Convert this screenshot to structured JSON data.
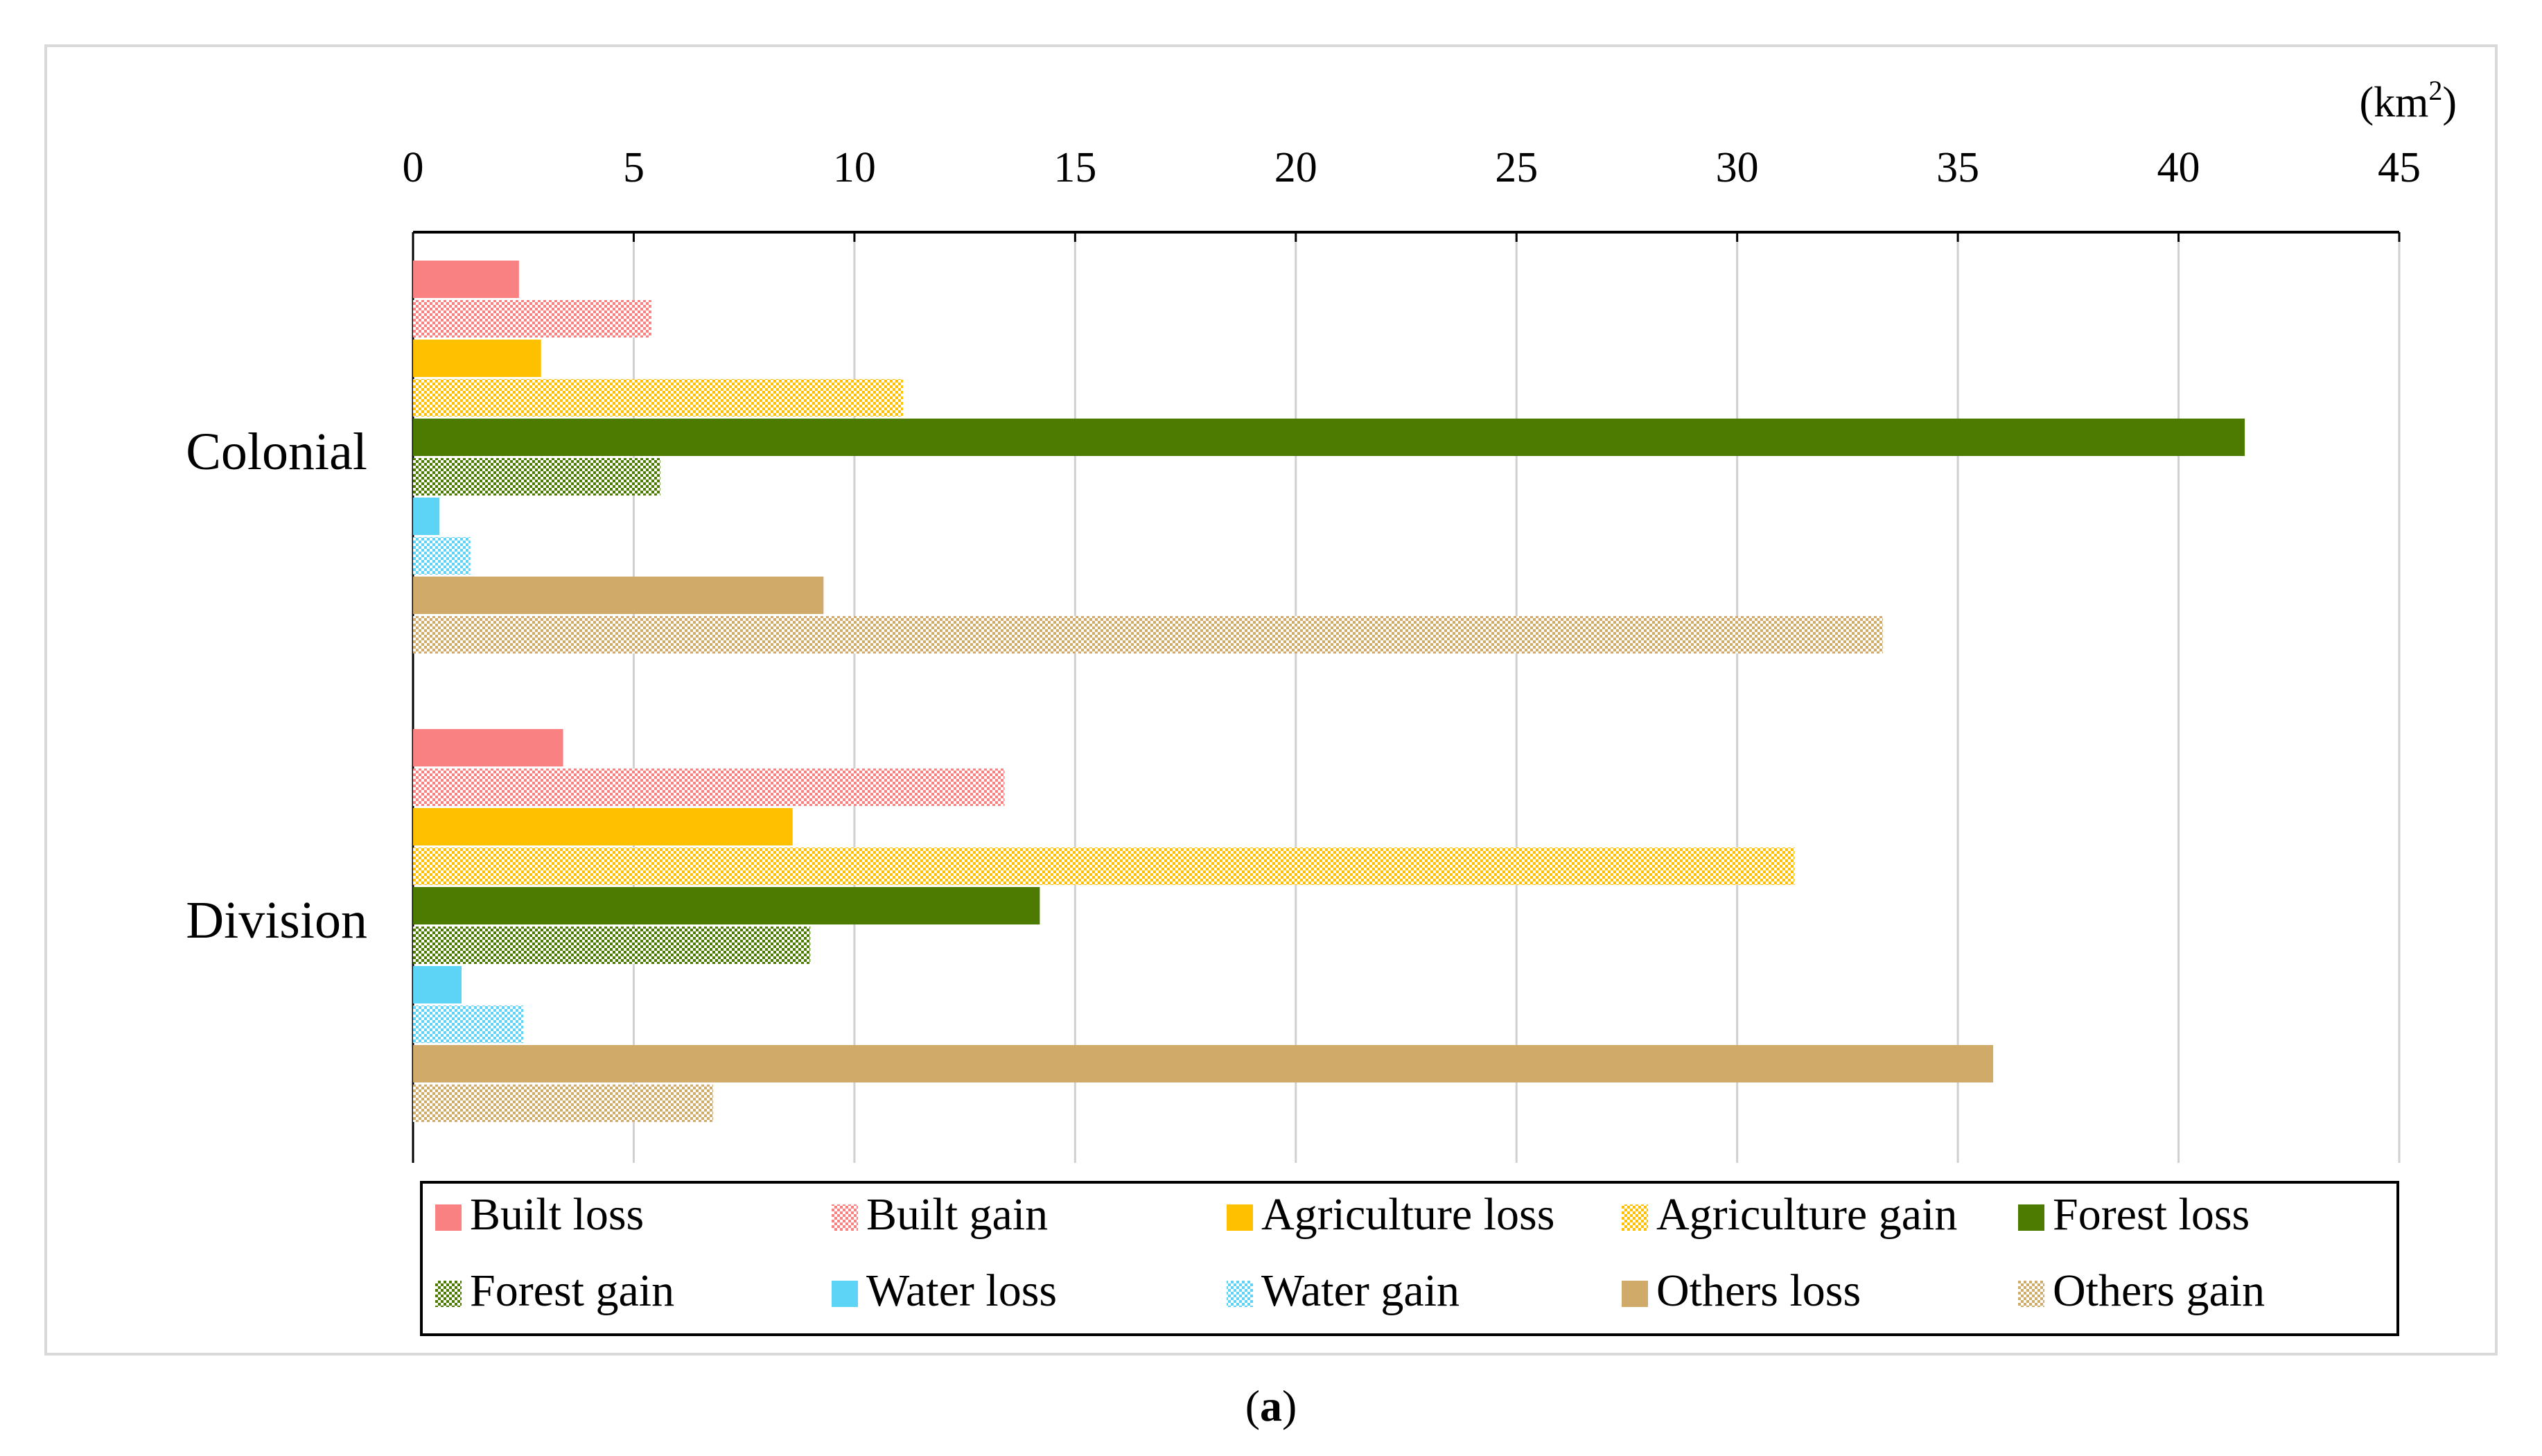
{
  "chart_data": {
    "type": "bar",
    "orientation": "horizontal",
    "unit_label": "(km²)",
    "unit_base": "(km",
    "unit_sup": "2",
    "unit_close": ")",
    "xlim": [
      0,
      45
    ],
    "xticks": [
      0,
      5,
      10,
      15,
      20,
      25,
      30,
      35,
      40,
      45
    ],
    "grid": true,
    "categories": [
      "Colonial",
      "Division"
    ],
    "series": [
      {
        "name": "Built loss",
        "color": "#F98181",
        "pattern": false,
        "values": [
          2.4,
          3.4
        ]
      },
      {
        "name": "Built gain",
        "color": "#F98181",
        "pattern": true,
        "values": [
          5.4,
          13.4
        ]
      },
      {
        "name": "Agriculture loss",
        "color": "#FFC000",
        "pattern": false,
        "values": [
          2.9,
          8.6
        ]
      },
      {
        "name": "Agriculture gain",
        "color": "#FFC000",
        "pattern": true,
        "values": [
          11.1,
          31.3
        ]
      },
      {
        "name": "Forest loss",
        "color": "#4D7A00",
        "pattern": false,
        "values": [
          41.5,
          14.2
        ]
      },
      {
        "name": "Forest gain",
        "color": "#4D7A00",
        "pattern": true,
        "values": [
          5.6,
          9.0
        ]
      },
      {
        "name": "Water loss",
        "color": "#5DD3F5",
        "pattern": false,
        "values": [
          0.6,
          1.1
        ]
      },
      {
        "name": "Water gain",
        "color": "#5DD3F5",
        "pattern": true,
        "values": [
          1.3,
          2.5
        ]
      },
      {
        "name": "Others loss",
        "color": "#CFAA68",
        "pattern": false,
        "values": [
          9.3,
          35.8
        ]
      },
      {
        "name": "Others gain",
        "color": "#CFAA68",
        "pattern": true,
        "values": [
          33.3,
          6.8
        ]
      }
    ],
    "legend_position": "bottom",
    "caption_open": "(",
    "caption_letter": "a",
    "caption_close": ")"
  }
}
